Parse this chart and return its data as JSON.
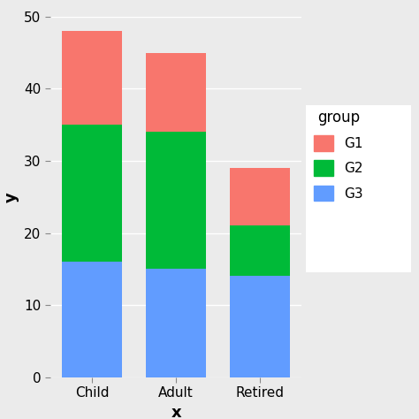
{
  "categories": [
    "Child",
    "Adult",
    "Retired"
  ],
  "G3_values": [
    16,
    15,
    14
  ],
  "G2_values": [
    19,
    19,
    7
  ],
  "G1_values": [
    13,
    11,
    8
  ],
  "colors": {
    "G1": "#F8766D",
    "G2": "#00BA38",
    "G3": "#619CFF"
  },
  "ylim": [
    0,
    50
  ],
  "yticks": [
    0,
    10,
    20,
    30,
    40,
    50
  ],
  "xlabel": "x",
  "ylabel": "y",
  "legend_title": "group",
  "plot_bg_color": "#EBEBEB",
  "fig_bg_color": "#EBEBEB",
  "legend_bg_color": "#FFFFFF",
  "grid_color": "#FFFFFF",
  "bar_width": 0.72,
  "axis_label_fontsize": 13,
  "tick_fontsize": 11,
  "legend_fontsize": 11,
  "legend_title_fontsize": 12
}
